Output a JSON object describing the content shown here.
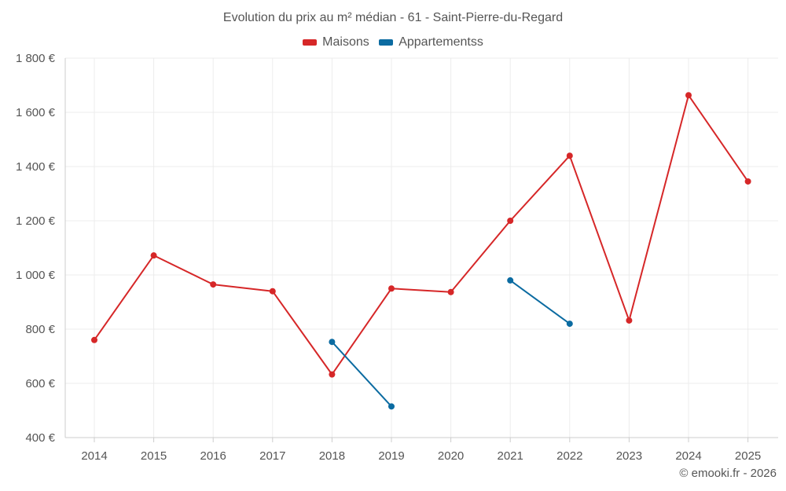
{
  "chart_data": {
    "type": "line",
    "title": "Evolution du prix au m² médian - 61 - Saint-Pierre-du-Regard",
    "xlabel": "",
    "ylabel": "",
    "categories": [
      "2014",
      "2015",
      "2016",
      "2017",
      "2018",
      "2019",
      "2020",
      "2021",
      "2022",
      "2023",
      "2024",
      "2025"
    ],
    "ylim": [
      400,
      1800
    ],
    "yticks": [
      400,
      600,
      800,
      1000,
      1200,
      1400,
      1600,
      1800
    ],
    "ytick_labels": [
      "400 €",
      "600 €",
      "800 €",
      "1 000 €",
      "1 200 €",
      "1 400 €",
      "1 600 €",
      "1 800 €"
    ],
    "grid": true,
    "legend_position": "top-center",
    "series": [
      {
        "name": "Maisons",
        "color": "#d62728",
        "values": [
          760,
          1072,
          965,
          940,
          633,
          950,
          937,
          1200,
          1440,
          832,
          1663,
          1345
        ]
      },
      {
        "name": "Appartementss",
        "color": "#0b6ba1",
        "values": [
          null,
          null,
          null,
          null,
          753,
          515,
          null,
          980,
          820,
          null,
          null,
          null
        ]
      }
    ]
  },
  "credit": "© emooki.fr - 2026"
}
